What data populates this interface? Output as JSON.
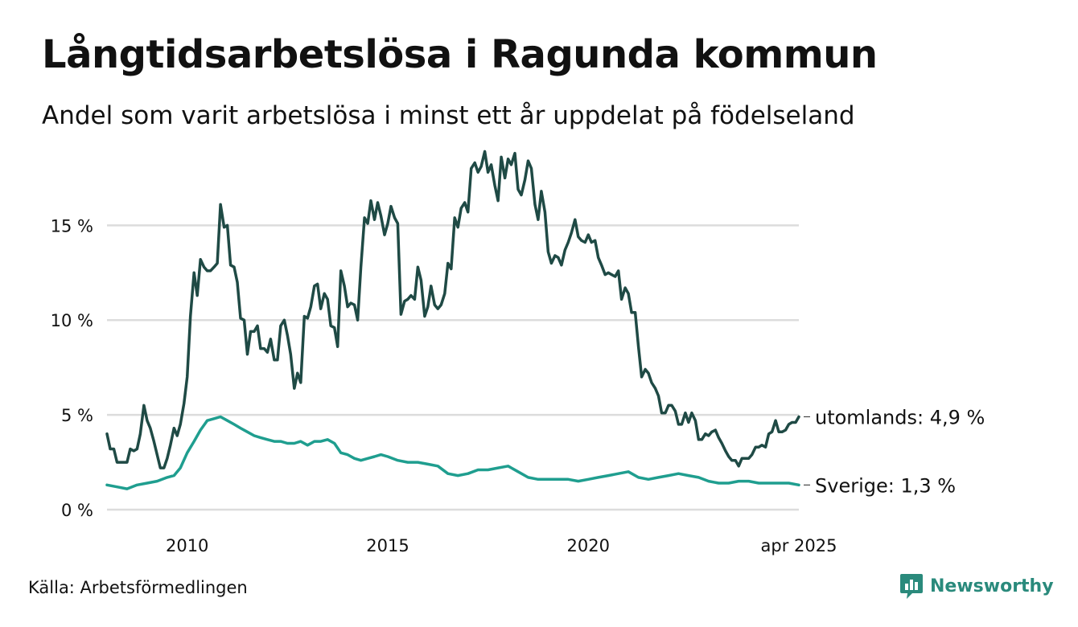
{
  "header": {
    "title": "Långtidsarbetslösa i Ragunda kommun",
    "subtitle": "Andel som varit arbetslösa i minst ett år uppdelat på födelseland"
  },
  "footer": {
    "source": "Källa: Arbetsförmedlingen",
    "brand": "Newsworthy",
    "brand_color": "#2a8a7c"
  },
  "chart_data": {
    "type": "line",
    "title": "Långtidsarbetslösa i Ragunda kommun",
    "subtitle": "Andel som varit arbetslösa i minst ett år uppdelat på födelseland",
    "ylim": [
      0,
      19
    ],
    "yticks": [
      0,
      5,
      10,
      15
    ],
    "ytick_labels": [
      "0 %",
      "5 %",
      "10 %",
      "15 %"
    ],
    "xlim": [
      2008.0,
      2025.25
    ],
    "xticks": [
      2010,
      2015,
      2020,
      2025.25
    ],
    "xtick_labels": [
      "2010",
      "2015",
      "2020",
      "apr 2025"
    ],
    "grid": true,
    "legend": "none (direct labels at line ends)",
    "series": [
      {
        "name": "utomlands",
        "end_label": "utomlands: 4,9 %",
        "color": "#1f4a45",
        "x": [
          2008.0,
          2008.08,
          2008.17,
          2008.25,
          2008.33,
          2008.42,
          2008.5,
          2008.58,
          2008.67,
          2008.75,
          2008.83,
          2008.92,
          2009.0,
          2009.08,
          2009.17,
          2009.25,
          2009.33,
          2009.42,
          2009.5,
          2009.58,
          2009.67,
          2009.75,
          2009.83,
          2009.92,
          2010.0,
          2010.08,
          2010.17,
          2010.25,
          2010.33,
          2010.42,
          2010.5,
          2010.58,
          2010.67,
          2010.75,
          2010.83,
          2010.92,
          2011.0,
          2011.08,
          2011.17,
          2011.25,
          2011.33,
          2011.42,
          2011.5,
          2011.58,
          2011.67,
          2011.75,
          2011.83,
          2011.92,
          2012.0,
          2012.08,
          2012.17,
          2012.25,
          2012.33,
          2012.42,
          2012.5,
          2012.58,
          2012.67,
          2012.75,
          2012.83,
          2012.92,
          2013.0,
          2013.08,
          2013.17,
          2013.25,
          2013.33,
          2013.42,
          2013.5,
          2013.58,
          2013.67,
          2013.75,
          2013.83,
          2013.92,
          2014.0,
          2014.08,
          2014.17,
          2014.25,
          2014.33,
          2014.42,
          2014.5,
          2014.58,
          2014.67,
          2014.75,
          2014.83,
          2014.92,
          2015.0,
          2015.08,
          2015.17,
          2015.25,
          2015.33,
          2015.42,
          2015.5,
          2015.58,
          2015.67,
          2015.75,
          2015.83,
          2015.92,
          2016.0,
          2016.08,
          2016.17,
          2016.25,
          2016.33,
          2016.42,
          2016.5,
          2016.58,
          2016.67,
          2016.75,
          2016.83,
          2016.92,
          2017.0,
          2017.08,
          2017.17,
          2017.25,
          2017.33,
          2017.42,
          2017.5,
          2017.58,
          2017.67,
          2017.75,
          2017.83,
          2017.92,
          2018.0,
          2018.08,
          2018.17,
          2018.25,
          2018.33,
          2018.42,
          2018.5,
          2018.58,
          2018.67,
          2018.75,
          2018.83,
          2018.92,
          2019.0,
          2019.08,
          2019.17,
          2019.25,
          2019.33,
          2019.42,
          2019.5,
          2019.58,
          2019.67,
          2019.75,
          2019.83,
          2019.92,
          2020.0,
          2020.08,
          2020.17,
          2020.25,
          2020.33,
          2020.42,
          2020.5,
          2020.58,
          2020.67,
          2020.75,
          2020.83,
          2020.92,
          2021.0,
          2021.08,
          2021.17,
          2021.25,
          2021.33,
          2021.42,
          2021.5,
          2021.58,
          2021.67,
          2021.75,
          2021.83,
          2021.92,
          2022.0,
          2022.08,
          2022.17,
          2022.25,
          2022.33,
          2022.42,
          2022.5,
          2022.58,
          2022.67,
          2022.75,
          2022.83,
          2022.92,
          2023.0,
          2023.08,
          2023.17,
          2023.25,
          2023.33,
          2023.42,
          2023.5,
          2023.58,
          2023.67,
          2023.75,
          2023.83,
          2023.92,
          2024.0,
          2024.08,
          2024.17,
          2024.25,
          2024.33,
          2024.42,
          2024.5,
          2024.58,
          2024.67,
          2024.75,
          2024.83,
          2024.92,
          2025.0,
          2025.08,
          2025.17,
          2025.25
        ],
        "values": [
          4.0,
          3.2,
          3.2,
          2.5,
          2.5,
          2.5,
          2.5,
          3.2,
          3.1,
          3.2,
          4.0,
          5.5,
          4.7,
          4.3,
          3.6,
          2.9,
          2.2,
          2.2,
          2.7,
          3.4,
          4.3,
          3.9,
          4.5,
          5.6,
          7.0,
          10.2,
          12.5,
          11.3,
          13.2,
          12.8,
          12.6,
          12.6,
          12.8,
          13.0,
          16.1,
          14.9,
          15.0,
          12.9,
          12.8,
          12.0,
          10.1,
          10.0,
          8.2,
          9.4,
          9.4,
          9.7,
          8.5,
          8.5,
          8.3,
          9.0,
          7.9,
          7.9,
          9.7,
          10.0,
          9.2,
          8.2,
          6.4,
          7.2,
          6.7,
          10.2,
          10.1,
          10.7,
          11.8,
          11.9,
          10.6,
          11.4,
          11.1,
          9.7,
          9.6,
          8.6,
          12.6,
          11.8,
          10.7,
          10.9,
          10.8,
          10.0,
          12.8,
          15.4,
          15.1,
          16.3,
          15.3,
          16.2,
          15.5,
          14.5,
          15.1,
          16.0,
          15.4,
          15.1,
          10.3,
          11.0,
          11.1,
          11.3,
          11.1,
          12.8,
          12.1,
          10.2,
          10.7,
          11.8,
          10.8,
          10.6,
          10.8,
          11.4,
          13.0,
          12.7,
          15.4,
          14.9,
          15.9,
          16.2,
          15.7,
          18.0,
          18.3,
          17.8,
          18.1,
          18.9,
          17.8,
          18.2,
          17.1,
          16.3,
          18.6,
          17.5,
          18.5,
          18.2,
          18.8,
          16.9,
          16.6,
          17.4,
          18.4,
          18.0,
          16.1,
          15.3,
          16.8,
          15.7,
          13.6,
          13.0,
          13.4,
          13.3,
          12.9,
          13.7,
          14.1,
          14.6,
          15.3,
          14.4,
          14.2,
          14.1,
          14.5,
          14.1,
          14.2,
          13.3,
          12.9,
          12.4,
          12.5,
          12.4,
          12.3,
          12.6,
          11.1,
          11.7,
          11.4,
          10.4,
          10.4,
          8.6,
          7.0,
          7.4,
          7.2,
          6.7,
          6.4,
          6.0,
          5.1,
          5.1,
          5.5,
          5.5,
          5.2,
          4.5,
          4.5,
          5.1,
          4.6,
          5.1,
          4.7,
          3.7,
          3.7,
          4.0,
          3.9,
          4.1,
          4.2,
          3.8,
          3.5,
          3.1,
          2.8,
          2.6,
          2.6,
          2.3,
          2.7,
          2.7,
          2.7,
          2.9,
          3.3,
          3.3,
          3.4,
          3.3,
          4.0,
          4.1,
          4.7,
          4.1,
          4.1,
          4.2,
          4.5,
          4.6,
          4.6,
          4.9
        ]
      },
      {
        "name": "Sverige",
        "end_label": "Sverige: 1,3 %",
        "color": "#1f9e8f",
        "x": [
          2008.0,
          2008.25,
          2008.5,
          2008.75,
          2009.0,
          2009.25,
          2009.5,
          2009.67,
          2009.83,
          2010.0,
          2010.17,
          2010.33,
          2010.5,
          2010.67,
          2010.83,
          2011.0,
          2011.17,
          2011.33,
          2011.5,
          2011.67,
          2011.83,
          2012.0,
          2012.17,
          2012.33,
          2012.5,
          2012.67,
          2012.83,
          2013.0,
          2013.17,
          2013.33,
          2013.5,
          2013.67,
          2013.83,
          2014.0,
          2014.17,
          2014.33,
          2014.5,
          2014.67,
          2014.83,
          2015.0,
          2015.25,
          2015.5,
          2015.75,
          2016.0,
          2016.25,
          2016.5,
          2016.75,
          2017.0,
          2017.25,
          2017.5,
          2017.75,
          2018.0,
          2018.25,
          2018.5,
          2018.75,
          2019.0,
          2019.25,
          2019.5,
          2019.75,
          2020.0,
          2020.25,
          2020.5,
          2020.75,
          2021.0,
          2021.25,
          2021.5,
          2021.75,
          2022.0,
          2022.25,
          2022.5,
          2022.75,
          2023.0,
          2023.25,
          2023.5,
          2023.75,
          2024.0,
          2024.25,
          2024.5,
          2024.75,
          2025.0,
          2025.25
        ],
        "values": [
          1.3,
          1.2,
          1.1,
          1.3,
          1.4,
          1.5,
          1.7,
          1.8,
          2.2,
          3.0,
          3.6,
          4.2,
          4.7,
          4.8,
          4.9,
          4.7,
          4.5,
          4.3,
          4.1,
          3.9,
          3.8,
          3.7,
          3.6,
          3.6,
          3.5,
          3.5,
          3.6,
          3.4,
          3.6,
          3.6,
          3.7,
          3.5,
          3.0,
          2.9,
          2.7,
          2.6,
          2.7,
          2.8,
          2.9,
          2.8,
          2.6,
          2.5,
          2.5,
          2.4,
          2.3,
          1.9,
          1.8,
          1.9,
          2.1,
          2.1,
          2.2,
          2.3,
          2.0,
          1.7,
          1.6,
          1.6,
          1.6,
          1.6,
          1.5,
          1.6,
          1.7,
          1.8,
          1.9,
          2.0,
          1.7,
          1.6,
          1.7,
          1.8,
          1.9,
          1.8,
          1.7,
          1.5,
          1.4,
          1.4,
          1.5,
          1.5,
          1.4,
          1.4,
          1.4,
          1.4,
          1.3
        ]
      }
    ]
  }
}
